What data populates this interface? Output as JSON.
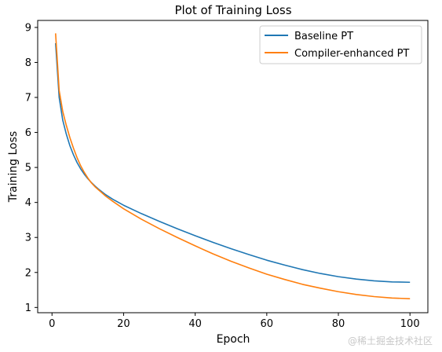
{
  "chart_data": {
    "type": "line",
    "title": "Plot of Training Loss",
    "xlabel": "Epoch",
    "ylabel": "Training Loss",
    "xlim": [
      -4,
      105
    ],
    "ylim": [
      0.85,
      9.2
    ],
    "xticks": [
      0,
      20,
      40,
      60,
      80,
      100
    ],
    "yticks": [
      1,
      2,
      3,
      4,
      5,
      6,
      7,
      8,
      9
    ],
    "grid": false,
    "legend": {
      "position": "top-right"
    },
    "series": [
      {
        "name": "Baseline PT",
        "color": "#1f77b4",
        "x": [
          1,
          2,
          3,
          4,
          5,
          6,
          7,
          8,
          9,
          10,
          11,
          12,
          13,
          15,
          17,
          20,
          25,
          30,
          35,
          40,
          45,
          50,
          55,
          60,
          65,
          70,
          75,
          80,
          85,
          90,
          95,
          100
        ],
        "y": [
          8.55,
          7.0,
          6.35,
          5.95,
          5.62,
          5.36,
          5.14,
          4.96,
          4.81,
          4.68,
          4.57,
          4.47,
          4.38,
          4.22,
          4.09,
          3.92,
          3.68,
          3.46,
          3.25,
          3.05,
          2.86,
          2.68,
          2.51,
          2.35,
          2.21,
          2.08,
          1.97,
          1.88,
          1.81,
          1.76,
          1.73,
          1.72
        ]
      },
      {
        "name": "Compiler-enhanced PT",
        "color": "#ff7f0e",
        "x": [
          1,
          2,
          3,
          4,
          5,
          6,
          7,
          8,
          9,
          10,
          11,
          12,
          13,
          15,
          17,
          20,
          25,
          30,
          35,
          40,
          45,
          50,
          55,
          60,
          65,
          70,
          75,
          80,
          85,
          90,
          95,
          100
        ],
        "y": [
          8.83,
          7.2,
          6.6,
          6.2,
          5.85,
          5.55,
          5.28,
          5.05,
          4.86,
          4.7,
          4.56,
          4.45,
          4.36,
          4.18,
          4.03,
          3.82,
          3.52,
          3.25,
          3.0,
          2.76,
          2.53,
          2.32,
          2.13,
          1.95,
          1.8,
          1.66,
          1.55,
          1.45,
          1.37,
          1.31,
          1.27,
          1.25
        ]
      }
    ]
  },
  "watermark": "@稀土掘金技术社区"
}
